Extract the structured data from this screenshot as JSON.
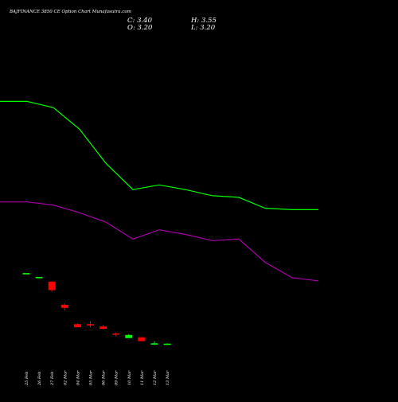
{
  "header": {
    "title": "BAJFINANCE 3850 CE Option Chart Munafasutra.com",
    "ohlc": {
      "c": "C: 3.40",
      "h": "H: 3.55",
      "o": "O: 3.20",
      "l": "L: 3.20"
    }
  },
  "chart_data": {
    "type": "candlestick",
    "title": "BAJFINANCE 3850 CE Option Chart Munafasutra.com",
    "categories": [
      "25 Feb",
      "26 Feb",
      "27 Feb",
      "02 Mar",
      "04 Mar",
      "05 Mar",
      "06 Mar",
      "09 Mar",
      "10 Mar",
      "11 Mar",
      "12 Mar",
      "13 Mar"
    ],
    "candles": [
      {
        "date": "25 Feb",
        "open": 49.0,
        "high": 49.0,
        "low": 49.0,
        "close": 49.0,
        "color": "#00ff00"
      },
      {
        "date": "26 Feb",
        "open": 46.5,
        "high": 46.5,
        "low": 46.5,
        "close": 46.5,
        "color": "#00ff00"
      },
      {
        "date": "27 Feb",
        "open": 43.5,
        "high": 43.5,
        "low": 37.0,
        "close": 38.0,
        "color": "#ff0000"
      },
      {
        "date": "02 Mar",
        "open": 28.5,
        "high": 29.5,
        "low": 25.0,
        "close": 26.5,
        "color": "#ff0000"
      },
      {
        "date": "04 Mar",
        "open": 16.0,
        "high": 16.5,
        "low": 14.0,
        "close": 14.0,
        "color": "#ff0000"
      },
      {
        "date": "05 Mar",
        "open": 16.0,
        "high": 18.0,
        "low": 14.0,
        "close": 15.5,
        "color": "#ff0000"
      },
      {
        "date": "06 Mar",
        "open": 14.5,
        "high": 15.5,
        "low": 12.5,
        "close": 13.0,
        "color": "#ff0000"
      },
      {
        "date": "09 Mar",
        "open": 10.0,
        "high": 10.5,
        "low": 8.0,
        "close": 10.0,
        "color": "#ff0000"
      },
      {
        "date": "10 Mar",
        "open": 7.0,
        "high": 9.5,
        "low": 7.0,
        "close": 9.0,
        "color": "#00ff00"
      },
      {
        "date": "11 Mar",
        "open": 7.5,
        "high": 7.5,
        "low": 5.0,
        "close": 5.0,
        "color": "#ff0000"
      },
      {
        "date": "12 Mar",
        "open": 3.2,
        "high": 5.0,
        "low": 2.5,
        "close": 3.6,
        "color": "#00ff00"
      },
      {
        "date": "13 Mar",
        "open": 3.2,
        "high": 3.55,
        "low": 3.2,
        "close": 3.4,
        "color": "#00ff00"
      }
    ],
    "series": [
      {
        "color": "#00ff00",
        "x": [
          0,
          34,
          67,
          100,
          133,
          167,
          200,
          233,
          267,
          300,
          333,
          367,
          400
        ],
        "values": [
          160,
          160,
          156,
          142,
          120,
          103,
          106,
          103,
          99,
          98,
          91,
          90,
          90
        ]
      },
      {
        "color": "#aa00aa",
        "x": [
          0,
          34,
          67,
          100,
          133,
          167,
          200,
          233,
          267,
          300,
          333,
          367,
          400
        ],
        "values": [
          95,
          95,
          93,
          88,
          82,
          71,
          77,
          74,
          70,
          71,
          56,
          46,
          44
        ]
      }
    ],
    "xlabel": "",
    "ylabel": "",
    "ylim": [
      -5,
      205
    ],
    "xlim": [
      0,
      500
    ],
    "grid": false,
    "colors": {
      "background": "#000000",
      "text": "#ffffff",
      "up": "#00ff00",
      "down": "#ff0000"
    }
  }
}
